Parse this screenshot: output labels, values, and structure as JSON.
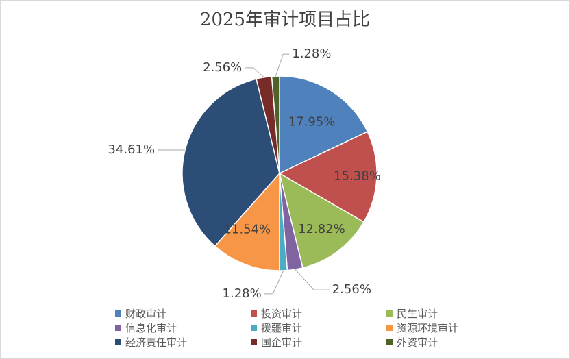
{
  "chart_data": {
    "type": "pie",
    "title": "2025年审计项目占比",
    "categories": [
      "财政审计",
      "投资审计",
      "民生审计",
      "信息化审计",
      "援疆审计",
      "资源环境审计",
      "经济责任审计",
      "国企审计",
      "外资审计"
    ],
    "values": [
      17.95,
      15.38,
      12.82,
      2.56,
      1.28,
      11.54,
      34.61,
      2.56,
      1.28
    ],
    "data_labels": [
      "17.95%",
      "15.38%",
      "12.82%",
      "2.56%",
      "1.28%",
      "11.54%",
      "34.61%",
      "2.56%",
      "1.28%"
    ],
    "colors": [
      "#4F81BD",
      "#C0504D",
      "#9BBB59",
      "#8064A2",
      "#4BACC6",
      "#F79646",
      "#2C4D75",
      "#772C2A",
      "#4F6228"
    ],
    "legend_position": "bottom"
  }
}
